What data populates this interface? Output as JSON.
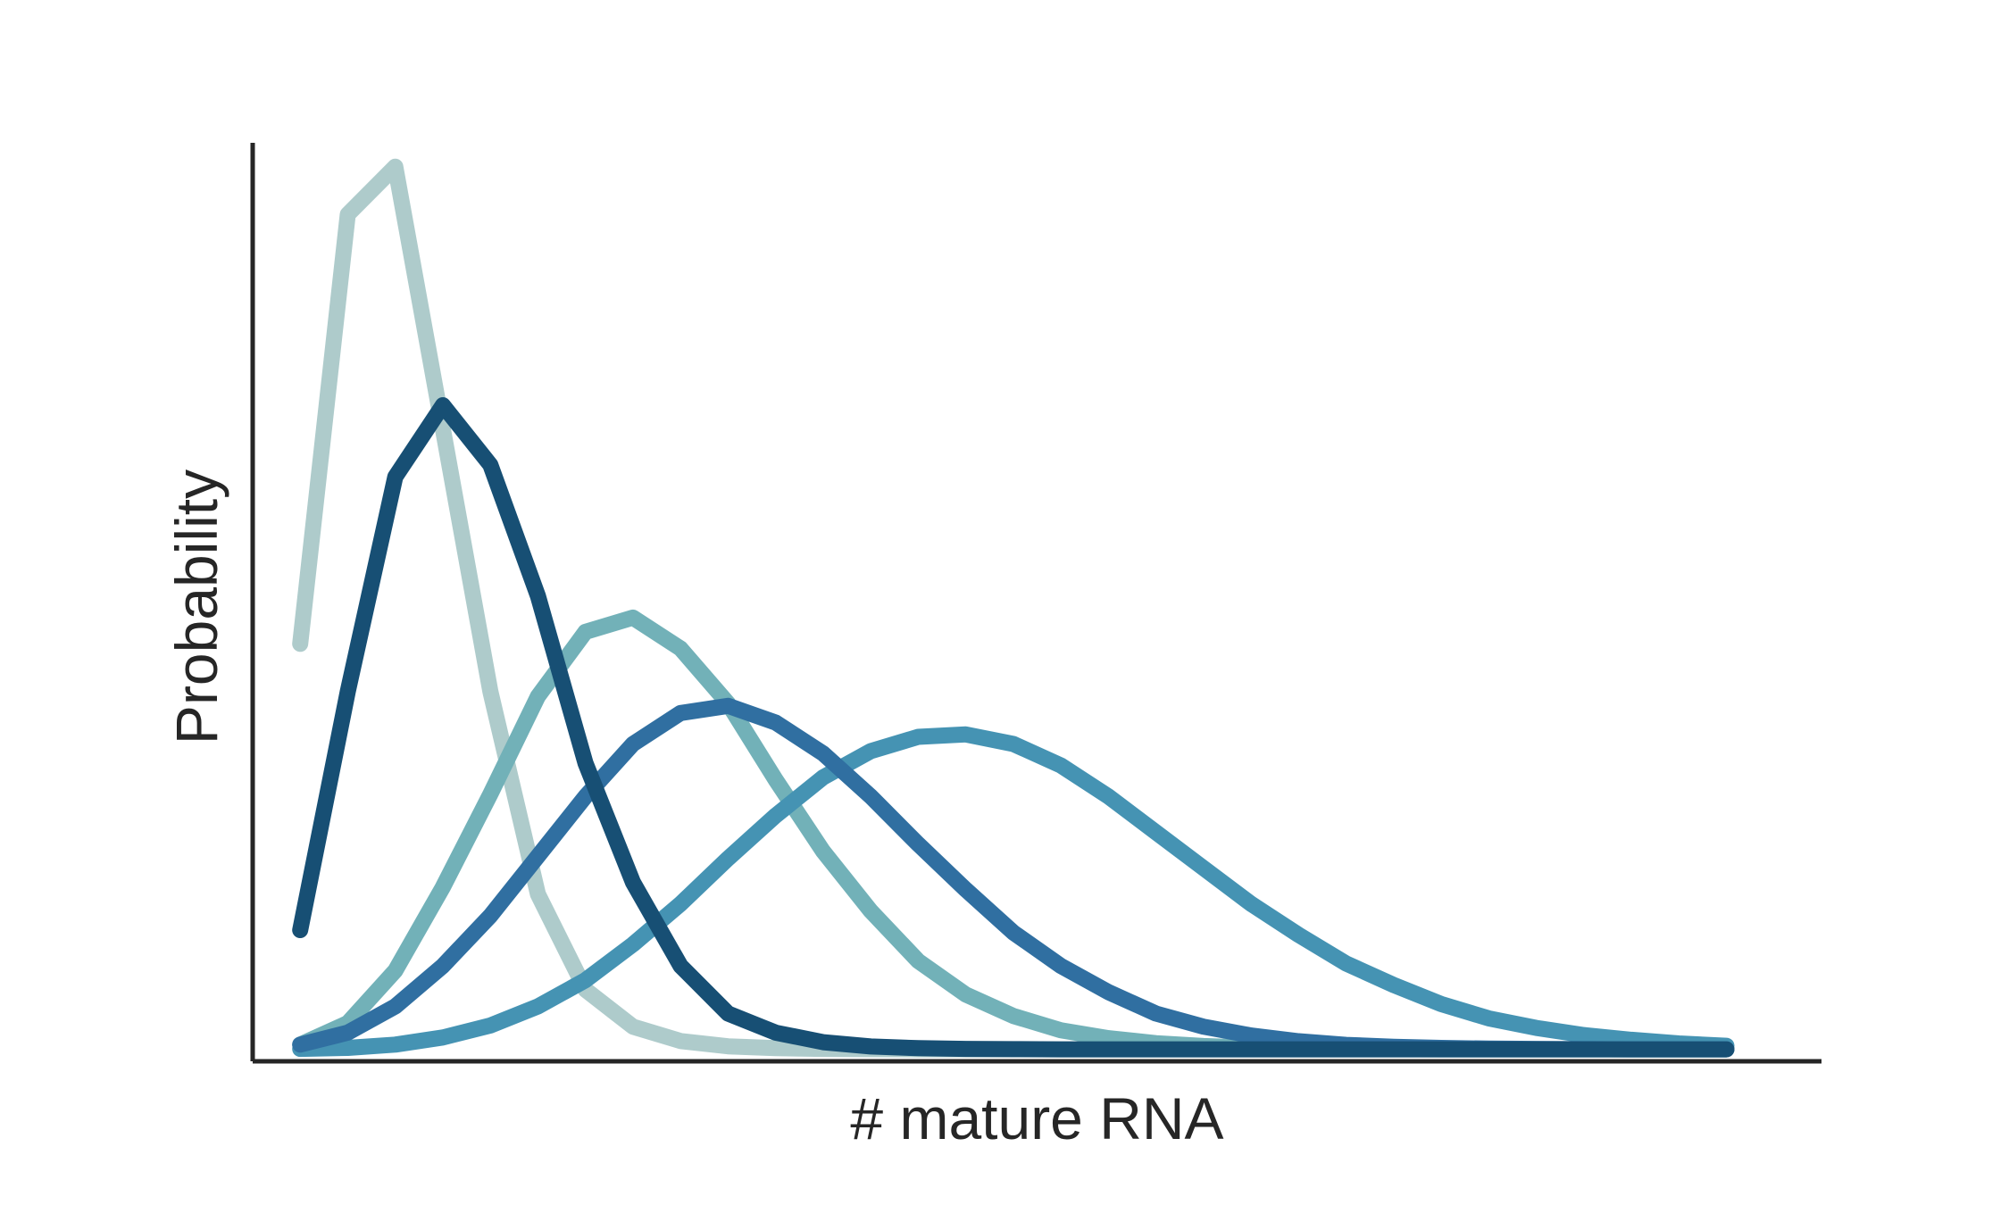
{
  "chart_data": {
    "type": "line",
    "xlabel": "# mature RNA",
    "ylabel": "Probability",
    "grid": false,
    "legend": "none",
    "x_ticks_shown": false,
    "y_ticks_shown": false,
    "xlim": [
      -1,
      32
    ],
    "ylim": [
      -0.005,
      0.38
    ],
    "x": [
      0,
      1,
      2,
      3,
      4,
      5,
      6,
      7,
      8,
      9,
      10,
      11,
      12,
      13,
      14,
      15,
      16,
      17,
      18,
      19,
      20,
      21,
      22,
      23,
      24,
      25,
      26,
      27,
      28,
      29,
      30
    ],
    "series": [
      {
        "color": "#aecbcb",
        "values": [
          0.17,
          0.35,
          0.37,
          0.26,
          0.15,
          0.065,
          0.025,
          0.0095,
          0.0035,
          0.0013,
          0.0005,
          0.0002,
          0.0001,
          0,
          0,
          0,
          0,
          0,
          0,
          0,
          0,
          0,
          0,
          0,
          0,
          0,
          0,
          0,
          0,
          0,
          0
        ]
      },
      {
        "color": "#72b1b8",
        "values": [
          0.002,
          0.011,
          0.033,
          0.068,
          0.107,
          0.148,
          0.175,
          0.181,
          0.168,
          0.145,
          0.113,
          0.083,
          0.058,
          0.037,
          0.023,
          0.014,
          0.008,
          0.0047,
          0.0026,
          0.0014,
          0.0007,
          0.0004,
          0.0002,
          0.0001,
          0,
          0,
          0,
          0,
          0,
          0,
          0
        ]
      },
      {
        "color": "#4593b3",
        "values": [
          0.0002,
          0.0006,
          0.002,
          0.005,
          0.01,
          0.018,
          0.029,
          0.044,
          0.061,
          0.08,
          0.098,
          0.114,
          0.125,
          0.131,
          0.132,
          0.128,
          0.119,
          0.106,
          0.091,
          0.076,
          0.061,
          0.048,
          0.036,
          0.027,
          0.019,
          0.013,
          0.009,
          0.006,
          0.004,
          0.0025,
          0.0015
        ]
      },
      {
        "color": "#306fa1",
        "values": [
          0.002,
          0.007,
          0.018,
          0.035,
          0.056,
          0.081,
          0.106,
          0.128,
          0.141,
          0.144,
          0.137,
          0.124,
          0.106,
          0.086,
          0.067,
          0.049,
          0.035,
          0.024,
          0.015,
          0.0095,
          0.0058,
          0.0034,
          0.0019,
          0.0011,
          0.0006,
          0.0003,
          0.0002,
          0.0001,
          0,
          0,
          0
        ]
      },
      {
        "color": "#174f74",
        "values": [
          0.05,
          0.15,
          0.24,
          0.27,
          0.245,
          0.19,
          0.12,
          0.07,
          0.035,
          0.015,
          0.007,
          0.003,
          0.0012,
          0.0005,
          0.0002,
          0.0001,
          0,
          0,
          0,
          0,
          0,
          0,
          0,
          0,
          0,
          0,
          0,
          0,
          0,
          0,
          0
        ]
      }
    ]
  }
}
